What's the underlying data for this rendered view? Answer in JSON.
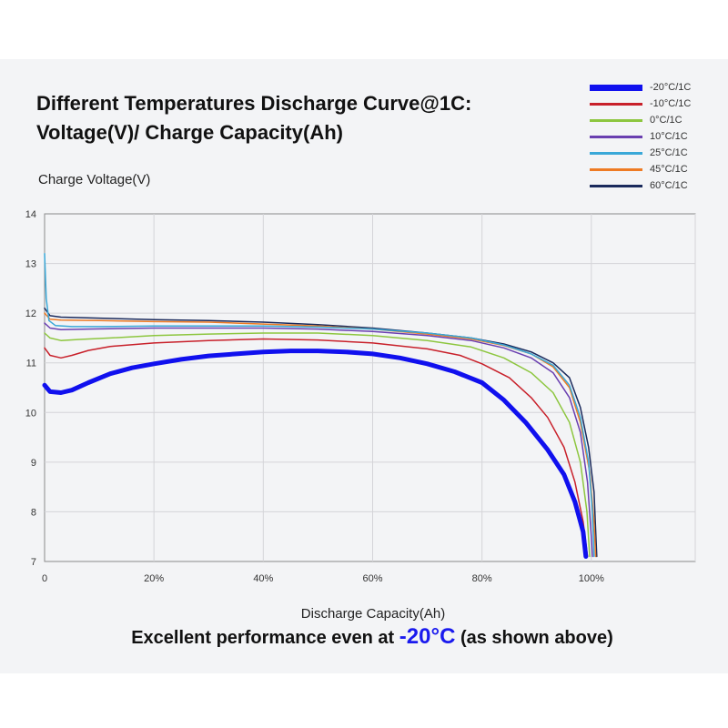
{
  "title_line1": "Different Temperatures Discharge Curve@1C:",
  "title_line2": "Voltage(V)/ Charge Capacity(Ah)",
  "caption": {
    "prefix": "Excellent performance even at ",
    "highlight": "-20°C",
    "suffix": " (as shown above)",
    "highlight_color": "#1a1aee"
  },
  "chart_data": {
    "type": "line",
    "title": "Different Temperatures Discharge Curve@1C: Voltage(V)/ Charge Capacity(Ah)",
    "xlabel": "Discharge Capacity(Ah)",
    "ylabel": "Charge Voltage(V)",
    "xlim": [
      0,
      119
    ],
    "ylim": [
      7,
      14
    ],
    "xticks": [
      0,
      20,
      40,
      60,
      80,
      100
    ],
    "xtick_labels": [
      "0",
      "20%",
      "40%",
      "60%",
      "80%",
      "100%"
    ],
    "yticks": [
      7,
      8,
      9,
      10,
      11,
      12,
      13,
      14
    ],
    "grid": true,
    "legend_position": "top-right",
    "series": [
      {
        "name": "-20°C/1C",
        "color": "#1010ee",
        "width": 5,
        "points": [
          [
            0,
            10.55
          ],
          [
            1,
            10.42
          ],
          [
            3,
            10.4
          ],
          [
            5,
            10.45
          ],
          [
            8,
            10.6
          ],
          [
            12,
            10.78
          ],
          [
            16,
            10.9
          ],
          [
            20,
            10.98
          ],
          [
            25,
            11.07
          ],
          [
            30,
            11.14
          ],
          [
            35,
            11.18
          ],
          [
            40,
            11.22
          ],
          [
            45,
            11.24
          ],
          [
            50,
            11.24
          ],
          [
            55,
            11.22
          ],
          [
            60,
            11.18
          ],
          [
            65,
            11.1
          ],
          [
            70,
            10.98
          ],
          [
            75,
            10.82
          ],
          [
            80,
            10.6
          ],
          [
            84,
            10.25
          ],
          [
            88,
            9.8
          ],
          [
            92,
            9.25
          ],
          [
            95,
            8.75
          ],
          [
            97,
            8.2
          ],
          [
            98.5,
            7.6
          ],
          [
            99,
            7.1
          ]
        ]
      },
      {
        "name": "-10°C/1C",
        "color": "#c8202a",
        "width": 1.5,
        "points": [
          [
            0,
            11.3
          ],
          [
            1,
            11.15
          ],
          [
            3,
            11.1
          ],
          [
            5,
            11.15
          ],
          [
            8,
            11.25
          ],
          [
            12,
            11.33
          ],
          [
            20,
            11.4
          ],
          [
            30,
            11.45
          ],
          [
            40,
            11.48
          ],
          [
            50,
            11.46
          ],
          [
            60,
            11.4
          ],
          [
            70,
            11.28
          ],
          [
            76,
            11.15
          ],
          [
            80,
            10.98
          ],
          [
            85,
            10.7
          ],
          [
            89,
            10.3
          ],
          [
            92,
            9.9
          ],
          [
            95,
            9.3
          ],
          [
            97,
            8.6
          ],
          [
            98.5,
            7.8
          ],
          [
            99.3,
            7.1
          ]
        ]
      },
      {
        "name": "0°C/1C",
        "color": "#8dc63f",
        "width": 1.5,
        "points": [
          [
            0,
            11.6
          ],
          [
            1,
            11.5
          ],
          [
            3,
            11.45
          ],
          [
            6,
            11.47
          ],
          [
            12,
            11.5
          ],
          [
            20,
            11.55
          ],
          [
            30,
            11.58
          ],
          [
            40,
            11.6
          ],
          [
            50,
            11.6
          ],
          [
            60,
            11.55
          ],
          [
            70,
            11.45
          ],
          [
            78,
            11.32
          ],
          [
            84,
            11.1
          ],
          [
            89,
            10.8
          ],
          [
            93,
            10.4
          ],
          [
            96,
            9.8
          ],
          [
            98,
            9.0
          ],
          [
            99.2,
            8.0
          ],
          [
            99.7,
            7.1
          ]
        ]
      },
      {
        "name": "10°C/1C",
        "color": "#6a3fb0",
        "width": 1.5,
        "points": [
          [
            0,
            11.8
          ],
          [
            1,
            11.7
          ],
          [
            3,
            11.67
          ],
          [
            8,
            11.68
          ],
          [
            20,
            11.7
          ],
          [
            30,
            11.7
          ],
          [
            40,
            11.7
          ],
          [
            50,
            11.68
          ],
          [
            60,
            11.63
          ],
          [
            70,
            11.55
          ],
          [
            78,
            11.45
          ],
          [
            84,
            11.3
          ],
          [
            89,
            11.1
          ],
          [
            93,
            10.8
          ],
          [
            96,
            10.3
          ],
          [
            98,
            9.6
          ],
          [
            99.3,
            8.6
          ],
          [
            100,
            7.5
          ],
          [
            100.2,
            7.1
          ]
        ]
      },
      {
        "name": "25°C/1C",
        "color": "#3aa8d8",
        "width": 1.5,
        "points": [
          [
            0,
            13.2
          ],
          [
            0.3,
            12.3
          ],
          [
            0.8,
            11.85
          ],
          [
            2,
            11.75
          ],
          [
            5,
            11.73
          ],
          [
            10,
            11.73
          ],
          [
            20,
            11.74
          ],
          [
            30,
            11.74
          ],
          [
            40,
            11.74
          ],
          [
            50,
            11.72
          ],
          [
            60,
            11.68
          ],
          [
            70,
            11.6
          ],
          [
            78,
            11.5
          ],
          [
            84,
            11.36
          ],
          [
            89,
            11.18
          ],
          [
            93,
            10.95
          ],
          [
            96,
            10.55
          ],
          [
            98,
            9.9
          ],
          [
            99.5,
            9.0
          ],
          [
            100.2,
            8.0
          ],
          [
            100.5,
            7.1
          ]
        ]
      },
      {
        "name": "45°C/1C",
        "color": "#ee7b24",
        "width": 1.5,
        "points": [
          [
            0,
            12.0
          ],
          [
            1,
            11.88
          ],
          [
            3,
            11.86
          ],
          [
            10,
            11.85
          ],
          [
            20,
            11.83
          ],
          [
            30,
            11.82
          ],
          [
            40,
            11.78
          ],
          [
            50,
            11.74
          ],
          [
            60,
            11.68
          ],
          [
            70,
            11.58
          ],
          [
            78,
            11.48
          ],
          [
            84,
            11.35
          ],
          [
            89,
            11.18
          ],
          [
            93,
            10.92
          ],
          [
            96,
            10.5
          ],
          [
            98,
            9.8
          ],
          [
            99.7,
            8.8
          ],
          [
            100.5,
            7.8
          ],
          [
            100.8,
            7.1
          ]
        ]
      },
      {
        "name": "60°C/1C",
        "color": "#1a2a5c",
        "width": 1.5,
        "points": [
          [
            0,
            12.1
          ],
          [
            1,
            11.95
          ],
          [
            3,
            11.92
          ],
          [
            10,
            11.9
          ],
          [
            20,
            11.87
          ],
          [
            30,
            11.85
          ],
          [
            40,
            11.82
          ],
          [
            50,
            11.77
          ],
          [
            60,
            11.7
          ],
          [
            70,
            11.6
          ],
          [
            78,
            11.5
          ],
          [
            84,
            11.38
          ],
          [
            89,
            11.22
          ],
          [
            93,
            11.0
          ],
          [
            96,
            10.7
          ],
          [
            98,
            10.1
          ],
          [
            99.5,
            9.3
          ],
          [
            100.5,
            8.4
          ],
          [
            101,
            7.1
          ]
        ]
      }
    ]
  }
}
